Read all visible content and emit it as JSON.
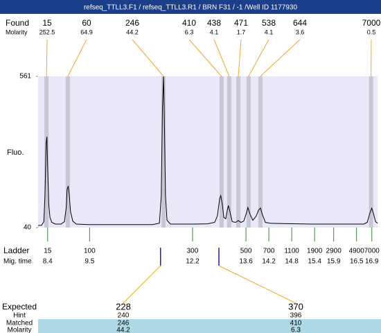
{
  "header": {
    "title": "refseq_TTLL3.F1 / refseq_TTLL3.R1 / BRN F31 / -1 /Well ID 1177930"
  },
  "found": {
    "label": "Found",
    "molarity_label": "Molarity",
    "peaks": [
      {
        "size": 15,
        "molarity": 252.5,
        "time": 8.37
      },
      {
        "size": 60,
        "molarity": 64.9,
        "time": 8.93
      },
      {
        "size": 246,
        "molarity": 44.2,
        "time": 11.44
      },
      {
        "size": 410,
        "molarity": 6.3,
        "time": 12.96
      },
      {
        "size": 438,
        "molarity": 4.1,
        "time": 13.16
      },
      {
        "size": 471,
        "molarity": 1.7,
        "time": 13.4
      },
      {
        "size": 538,
        "molarity": 4.1,
        "time": 13.67
      },
      {
        "size": 644,
        "molarity": 3.6,
        "time": 13.98
      },
      {
        "size": 7000,
        "molarity": 0.5,
        "time": 16.88
      }
    ]
  },
  "chart_data": {
    "type": "line",
    "y_label": "Fluo.",
    "color": "#000000",
    "xlim": [
      8.15,
      17.05
    ],
    "ylim": [
      40,
      561
    ],
    "yticks": [
      40,
      561
    ],
    "x": [
      8.15,
      8.24,
      8.3,
      8.33,
      8.36,
      8.38,
      8.4,
      8.43,
      8.46,
      8.51,
      8.6,
      8.75,
      8.84,
      8.89,
      8.91,
      8.94,
      8.97,
      9.0,
      9.06,
      9.15,
      9.51,
      10.42,
      11.15,
      11.33,
      11.38,
      11.41,
      11.44,
      11.46,
      11.49,
      11.53,
      11.62,
      12.24,
      12.6,
      12.78,
      12.85,
      12.91,
      12.94,
      12.98,
      13.02,
      13.07,
      13.11,
      13.14,
      13.18,
      13.24,
      13.33,
      13.4,
      13.47,
      13.54,
      13.6,
      13.65,
      13.71,
      13.78,
      13.87,
      13.93,
      13.98,
      14.03,
      14.11,
      14.23,
      14.42,
      15.32,
      16.23,
      16.69,
      16.78,
      16.85,
      16.9,
      16.94,
      17.0,
      17.05
    ],
    "values": [
      47,
      48,
      60,
      150,
      330,
      353,
      250,
      120,
      75,
      58,
      52,
      52,
      60,
      110,
      170,
      183,
      150,
      95,
      62,
      52,
      50,
      50,
      50,
      55,
      150,
      450,
      560,
      420,
      150,
      65,
      52,
      52,
      53,
      58,
      80,
      140,
      150,
      120,
      75,
      70,
      100,
      116,
      95,
      60,
      58,
      64,
      58,
      62,
      85,
      109,
      85,
      65,
      80,
      100,
      107,
      85,
      58,
      55,
      54,
      52,
      52,
      52,
      58,
      90,
      107,
      90,
      60,
      55
    ]
  },
  "ladder": {
    "label": "Ladder",
    "time_label": "Mig. time",
    "sizes": [
      15,
      100,
      300,
      500,
      700,
      1100,
      1900,
      2900,
      4900,
      7000
    ],
    "times": [
      8.4,
      9.5,
      12.2,
      13.6,
      14.2,
      14.8,
      15.4,
      15.9,
      16.5,
      16.9
    ]
  },
  "expected": {
    "label": "Expected",
    "hint_label": "Hint",
    "matched_label": "Matched",
    "molarity_label": "Molarity",
    "items": [
      {
        "size": 228,
        "hint": 240,
        "matched": 246,
        "molarity": 44.2,
        "time": 11.36
      },
      {
        "size": 370,
        "hint": 396,
        "matched": 410,
        "molarity": 6.3,
        "time": 12.89
      }
    ]
  }
}
